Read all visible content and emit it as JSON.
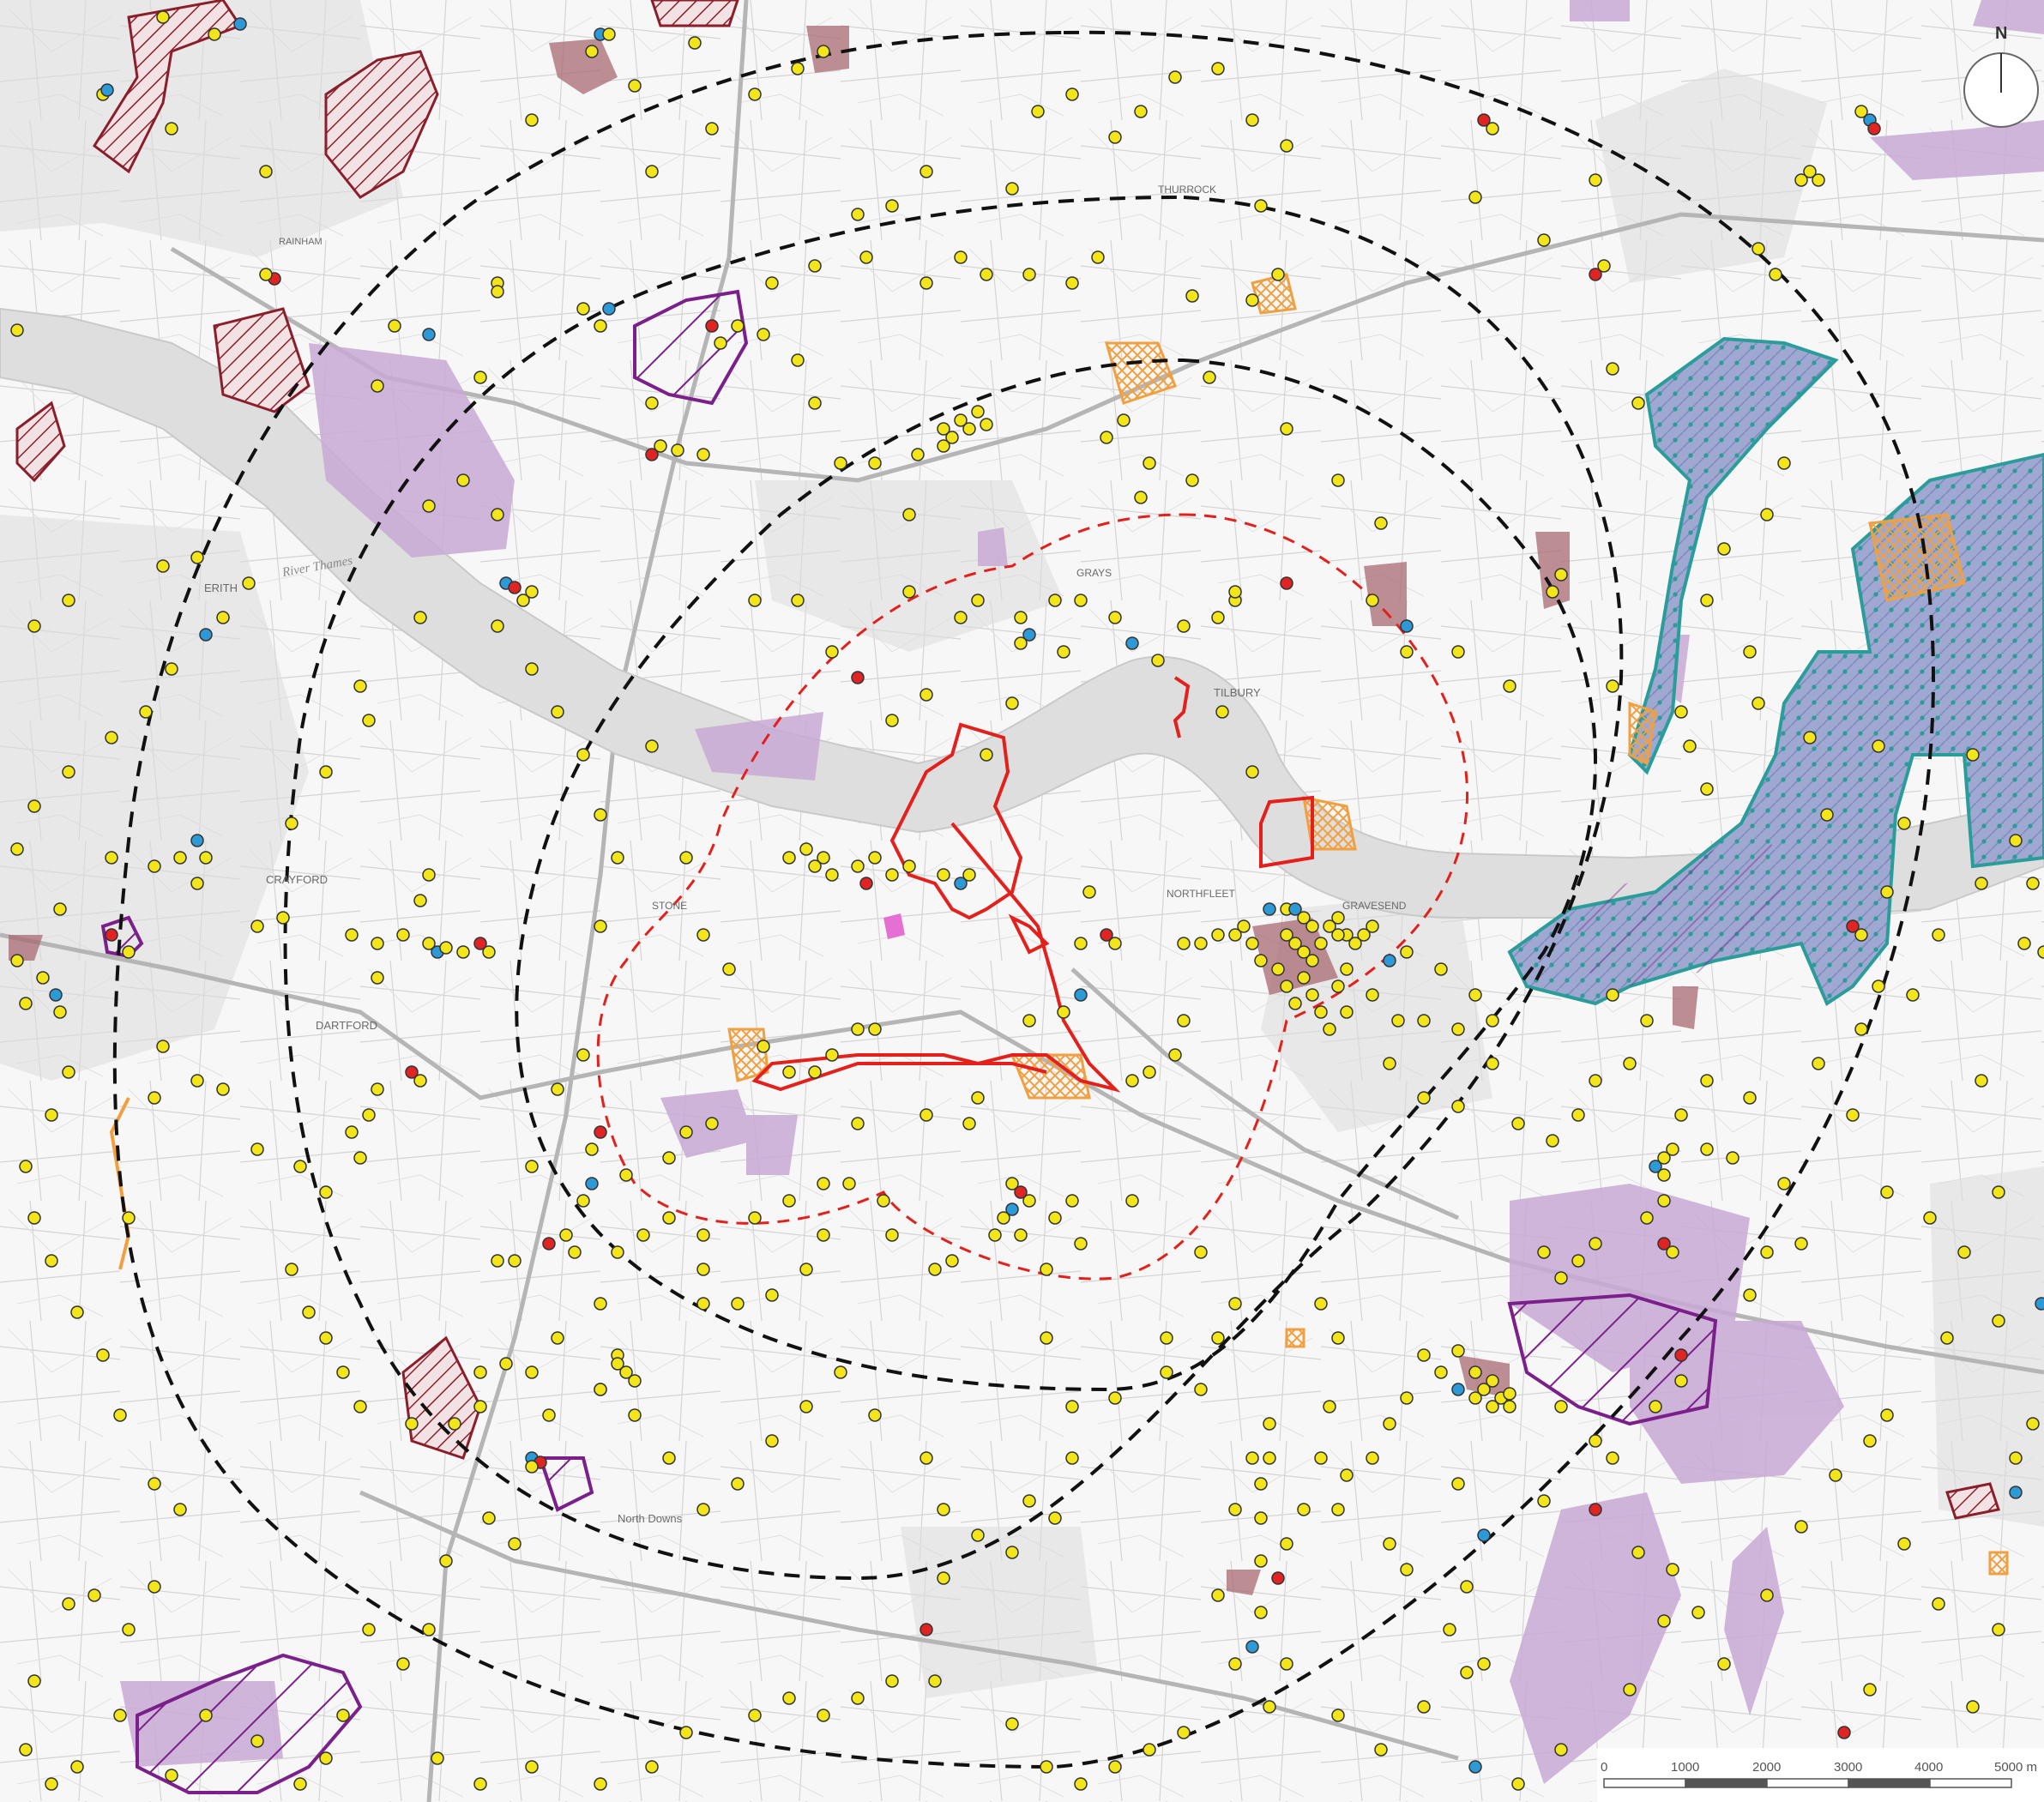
{
  "place_labels": [
    {
      "name": "ERITH"
    },
    {
      "name": "DARTFORD"
    },
    {
      "name": "CRAYFORD"
    },
    {
      "name": "TILBURY"
    },
    {
      "name": "GRAVESEND"
    },
    {
      "name": "NORTHFLEET"
    },
    {
      "name": "THURROCK"
    },
    {
      "name": "STONE"
    },
    {
      "name": "North Downs"
    },
    {
      "name": "GRAYS"
    },
    {
      "name": "RAINHAM"
    }
  ],
  "river_label": "River Thames",
  "north_arrow": {
    "letter": "N",
    "icon": "north-arrow-icon"
  },
  "scale_bar": {
    "ticks": [
      "0",
      "1000",
      "2000",
      "3000",
      "4000",
      "5000 m"
    ]
  },
  "colors": {
    "site_boundary": "#e3201b",
    "study_ring_inner": "#e3201b",
    "study_ring_outer": "#111111",
    "designated_purple": "#7b1f8a",
    "designated_maroon": "#8b1e2b",
    "marsh_teal": "#2a9d9b",
    "marsh_fill": "#9aa6cf",
    "woodland_lilac": "#c9a9d6",
    "orange_hatch": "#f0a040",
    "point_yellow": "#f2e61a",
    "point_blue": "#2d9ad8",
    "point_red": "#e02424",
    "river": "#dedede"
  }
}
